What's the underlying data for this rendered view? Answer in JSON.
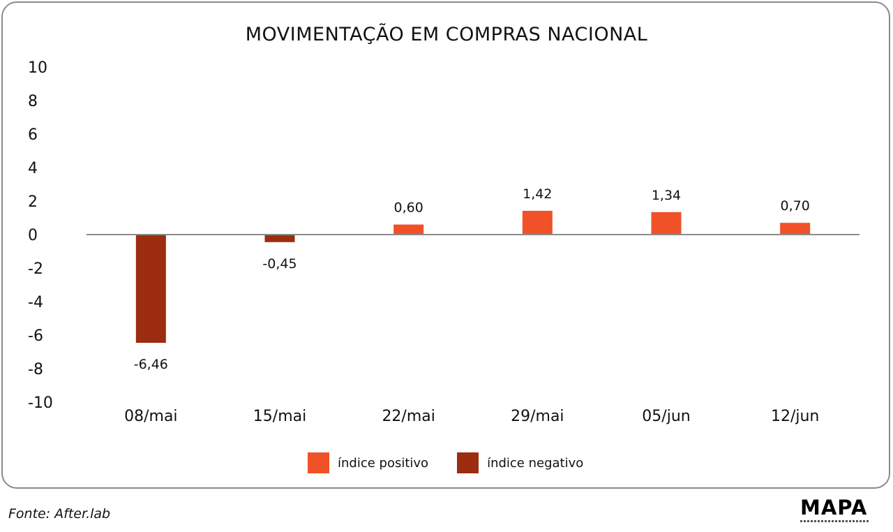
{
  "chart_data": {
    "type": "bar",
    "title": "MOVIMENTAÇÃO EM COMPRAS NACIONAL",
    "categories": [
      "08/mai",
      "15/mai",
      "22/mai",
      "29/mai",
      "05/jun",
      "12/jun"
    ],
    "values": [
      -6.46,
      -0.45,
      0.6,
      1.42,
      1.34,
      0.7
    ],
    "data_labels": [
      "-6,46",
      "-0,45",
      "0,60",
      "1,42",
      "1,34",
      "0,70"
    ],
    "y_ticks": [
      "10",
      "8",
      "6",
      "4",
      "2",
      "0",
      "-2",
      "-4",
      "-6",
      "-8",
      "-10"
    ],
    "ylim": [
      -10,
      10
    ],
    "xlabel": "",
    "ylabel": "",
    "grid": false,
    "legend_position": "bottom-center",
    "legend": [
      {
        "label": "índice positivo",
        "color": "#f05128"
      },
      {
        "label": "índice negativo",
        "color": "#9c2d10"
      }
    ],
    "colors": {
      "positive": "#f05128",
      "negative": "#9c2d10",
      "zero_line": "#8c8c8c"
    }
  },
  "footer": {
    "source": "Fonte: After.lab",
    "logo_text": "MAPA"
  }
}
